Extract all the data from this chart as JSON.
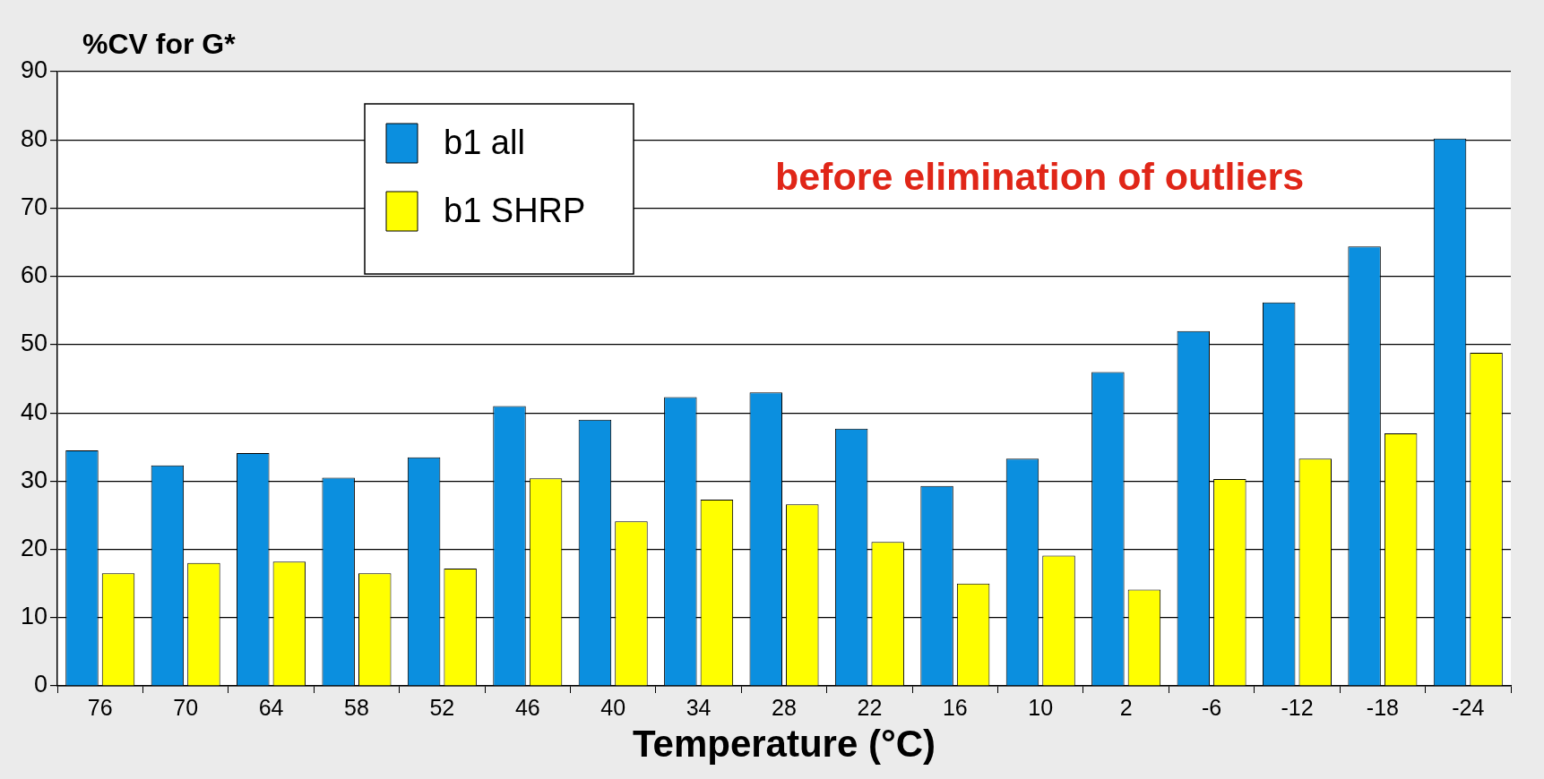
{
  "chart_data": {
    "type": "bar",
    "title": "%CV for G*",
    "xlabel": "Temperature (°C)",
    "categories": [
      "76",
      "70",
      "64",
      "58",
      "52",
      "46",
      "40",
      "34",
      "28",
      "22",
      "16",
      "10",
      "2",
      "-6",
      "-12",
      "-18",
      "-24"
    ],
    "series": [
      {
        "name": "b1 all",
        "color": "#0b8fdf",
        "values": [
          34.5,
          32.3,
          34.1,
          30.5,
          33.5,
          41,
          39,
          42.3,
          43,
          37.7,
          29.3,
          33.3,
          46,
          52,
          56.2,
          64.4,
          80.2
        ]
      },
      {
        "name": "b1 SHRP",
        "color": "#ffff00",
        "values": [
          16.5,
          18,
          18.2,
          16.5,
          17.2,
          30.4,
          24.1,
          27.3,
          26.6,
          21.1,
          15,
          19.1,
          14.1,
          30.3,
          33.3,
          37,
          48.8
        ]
      }
    ],
    "annotations": [
      "before elimination of outliers"
    ],
    "ylim": [
      0,
      90
    ],
    "yticks": [
      0,
      10,
      20,
      30,
      40,
      50,
      60,
      70,
      80,
      90
    ],
    "grid": "y",
    "legend": "top left"
  }
}
